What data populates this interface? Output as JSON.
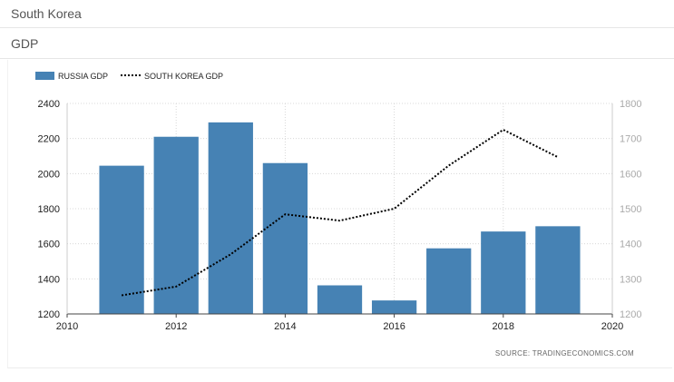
{
  "page": {
    "country": "South Korea",
    "indicator": "GDP"
  },
  "source_label": "SOURCE:  TRADINGECONOMICS.COM",
  "colors": {
    "bar": "#4682b4",
    "line": "#000000",
    "grid": "#d8d8d8",
    "right_axis_text": "#aaaaaa"
  },
  "chart_data": {
    "type": "bar",
    "title": "",
    "xlabel": "",
    "ylabel": "",
    "legend_position": "top-left",
    "grid": true,
    "x_ticks": [
      2010,
      2012,
      2014,
      2016,
      2018,
      2020
    ],
    "xlim": [
      2010,
      2020
    ],
    "left_axis": {
      "ticks": [
        1200,
        1400,
        1600,
        1800,
        2000,
        2200,
        2400
      ],
      "ylim": [
        1200,
        2400
      ]
    },
    "right_axis": {
      "ticks": [
        1200,
        1300,
        1400,
        1500,
        1600,
        1700,
        1800
      ],
      "ylim": [
        1200,
        1800
      ]
    },
    "series": [
      {
        "name": "RUSSIA GDP",
        "kind": "bar",
        "axis": "left",
        "x": [
          2011,
          2012,
          2013,
          2014,
          2015,
          2016,
          2017,
          2018,
          2019
        ],
        "values": [
          2045,
          2210,
          2292,
          2060,
          1363,
          1277,
          1574,
          1670,
          1700
        ]
      },
      {
        "name": "SOUTH KOREA GDP",
        "kind": "line",
        "style": "dotted",
        "axis": "right",
        "x": [
          2011,
          2012,
          2013,
          2014,
          2015,
          2016,
          2017,
          2018,
          2019
        ],
        "values": [
          1253,
          1278,
          1370,
          1484,
          1466,
          1500,
          1623,
          1725,
          1647
        ]
      }
    ]
  }
}
